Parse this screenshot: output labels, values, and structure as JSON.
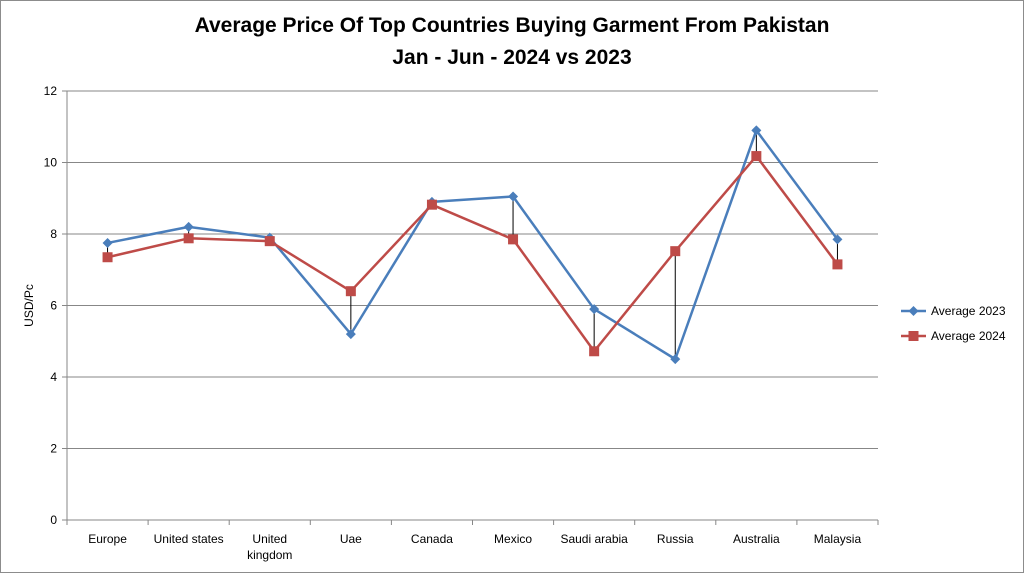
{
  "chart_data": {
    "type": "line",
    "title": "Average Price Of Top Countries Buying Garment From Pakistan",
    "subtitle": "Jan - Jun - 2024 vs 2023",
    "xlabel": "",
    "ylabel": "USD/Pc",
    "ylim": [
      0,
      12
    ],
    "yticks": [
      "0",
      "2",
      "4",
      "6",
      "8",
      "10",
      "12"
    ],
    "categories": [
      "Europe",
      "United states",
      "United kingdom",
      "Uae",
      "Canada",
      "Mexico",
      "Saudi arabia",
      "Russia",
      "Australia",
      "Malaysia"
    ],
    "grid": true,
    "legend_position": "right",
    "series": [
      {
        "name": "Average 2023",
        "color": "#4a7ebb",
        "marker": "diamond",
        "values": [
          7.75,
          8.2,
          7.9,
          5.2,
          8.9,
          9.05,
          5.9,
          4.5,
          10.9,
          7.85
        ]
      },
      {
        "name": "Average 2024",
        "color": "#be4b48",
        "marker": "square",
        "values": [
          7.35,
          7.88,
          7.8,
          6.4,
          8.82,
          7.85,
          4.72,
          7.52,
          10.18,
          7.15
        ]
      }
    ]
  }
}
